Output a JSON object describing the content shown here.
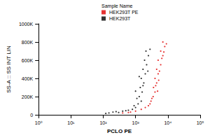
{
  "chart_data": {
    "type": "scatter",
    "x_label": "PCLO PE",
    "y_label": "SS-A :: SS INT LIN",
    "legend_title": "Sample Name",
    "legend": "top",
    "log": "x",
    "grid": false,
    "marker": "circle",
    "xlim": [
      1,
      100000
    ],
    "xticks": [
      {
        "value": 1,
        "label": "10⁰"
      },
      {
        "value": 10,
        "label": "10¹"
      },
      {
        "value": 100,
        "label": "10²"
      },
      {
        "value": 1000,
        "label": "10³"
      },
      {
        "value": 10000,
        "label": "10⁴"
      },
      {
        "value": 100000,
        "label": "10⁵"
      }
    ],
    "ylim": [
      0,
      1000000
    ],
    "yticks": [
      0,
      {
        "value": 200000,
        "label": "200K"
      },
      {
        "value": 400000,
        "label": "400K"
      },
      {
        "value": 600000,
        "label": "600K"
      },
      {
        "value": 800000,
        "label": "800K"
      },
      {
        "value": 1000000,
        "label": "1000K"
      }
    ],
    "series": [
      {
        "name": "HEK293T PE",
        "color": "#e00000",
        "values": [
          [
            400,
            20000
          ],
          [
            700,
            30000
          ],
          [
            1000,
            40000
          ],
          [
            1500,
            60000
          ],
          [
            2500,
            100000
          ],
          [
            3000,
            150000
          ],
          [
            3500,
            200000
          ],
          [
            4000,
            250000
          ],
          [
            3600,
            300000
          ],
          [
            4500,
            350000
          ],
          [
            4000,
            400000
          ],
          [
            5000,
            450000
          ],
          [
            4500,
            500000
          ],
          [
            6000,
            550000
          ],
          [
            5000,
            600000
          ],
          [
            7000,
            650000
          ],
          [
            6000,
            700000
          ],
          [
            8000,
            750000
          ],
          [
            7000,
            800000
          ],
          [
            2000,
            80000
          ],
          [
            3200,
            180000
          ],
          [
            4200,
            320000
          ],
          [
            5500,
            480000
          ],
          [
            6500,
            620000
          ],
          [
            9000,
            780000
          ],
          [
            600,
            25000
          ],
          [
            2800,
            120000
          ],
          [
            5200,
            380000
          ],
          [
            4800,
            260000
          ],
          [
            7500,
            690000
          ]
        ]
      },
      {
        "name": "HEK293T",
        "color": "#000000",
        "values": [
          [
            150,
            20000
          ],
          [
            200,
            30000
          ],
          [
            300,
            25000
          ],
          [
            120,
            15000
          ],
          [
            400,
            40000
          ],
          [
            600,
            50000
          ],
          [
            800,
            60000
          ],
          [
            1000,
            80000
          ],
          [
            1200,
            120000
          ],
          [
            1500,
            150000
          ],
          [
            1300,
            200000
          ],
          [
            1600,
            250000
          ],
          [
            1400,
            300000
          ],
          [
            1800,
            350000
          ],
          [
            1500,
            400000
          ],
          [
            2000,
            450000
          ],
          [
            1700,
            500000
          ],
          [
            2200,
            550000
          ],
          [
            1900,
            600000
          ],
          [
            2500,
            650000
          ],
          [
            2100,
            700000
          ],
          [
            900,
            100000
          ],
          [
            1100,
            180000
          ],
          [
            1700,
            320000
          ],
          [
            2400,
            480000
          ],
          [
            250,
            35000
          ],
          [
            500,
            45000
          ],
          [
            1000,
            260000
          ],
          [
            1300,
            420000
          ],
          [
            2800,
            720000
          ]
        ]
      }
    ]
  }
}
